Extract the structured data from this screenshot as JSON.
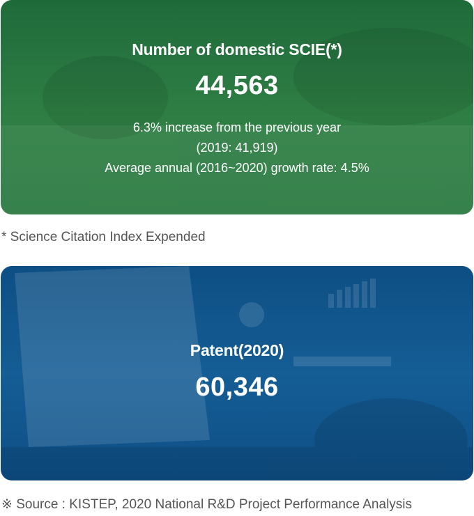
{
  "scie_card": {
    "title": "Number of domestic SCIE(*)",
    "value": "44,563",
    "line1": "6.3% increase from the previous year",
    "line2": "(2019: 41,919)",
    "line3": "Average annual (2016~2020) growth rate: 4.5%",
    "color": "#2a7a41"
  },
  "footnote": "* Science Citation Index Expended",
  "patent_card": {
    "title": "Patent(2020)",
    "value": "60,346",
    "color": "#125a92"
  },
  "source": "※ Source : KISTEP, 2020 National R&D Project Performance Analysis"
}
